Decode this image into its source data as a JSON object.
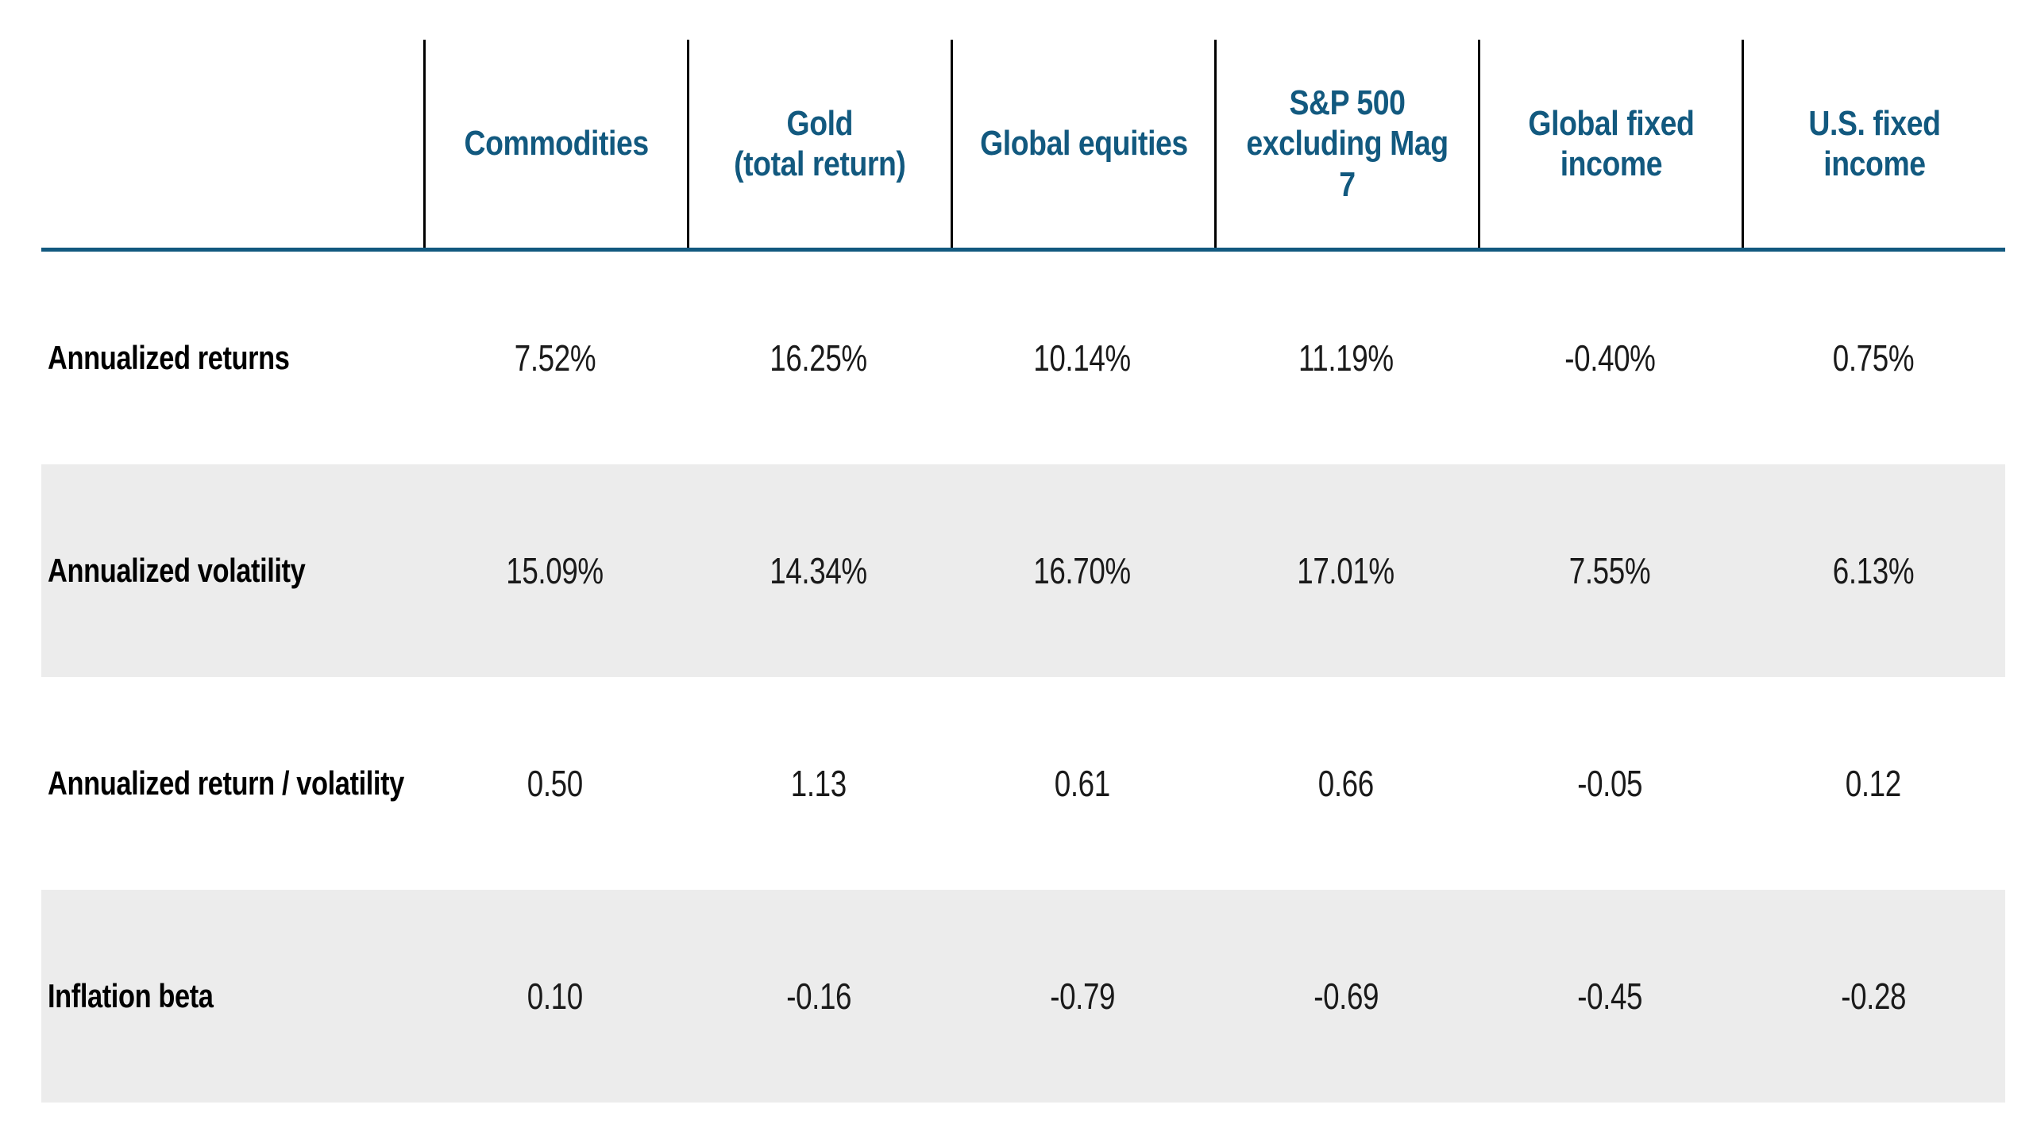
{
  "chart_data": {
    "type": "table",
    "title": "",
    "columns": [
      "Commodities",
      "Gold (total return)",
      "Global equities",
      "S&P 500 excluding Mag 7",
      "Global fixed income",
      "U.S. fixed income"
    ],
    "rows": [
      {
        "label": "Annualized returns",
        "values": [
          "7.52%",
          "16.25%",
          "10.14%",
          "11.19%",
          "-0.40%",
          "0.75%"
        ]
      },
      {
        "label": "Annualized volatility",
        "values": [
          "15.09%",
          "14.34%",
          "16.70%",
          "17.01%",
          "7.55%",
          "6.13%"
        ]
      },
      {
        "label": "Annualized return / volatility",
        "values": [
          "0.50",
          "1.13",
          "0.61",
          "0.66",
          "-0.05",
          "0.12"
        ]
      },
      {
        "label": "Inflation beta",
        "values": [
          "0.10",
          "-0.16",
          "-0.79",
          "-0.69",
          "-0.45",
          "-0.28"
        ]
      }
    ],
    "layout": {
      "shaded_rows": [
        1,
        3
      ],
      "header_dividers": "vertical black lines between value columns, header area only",
      "header_underline": "full-width blue rule"
    }
  },
  "display": {
    "column_labels": [
      "Commodities",
      "Gold\n(total return)",
      "Global equities",
      "S&P 500\nexcluding Mag 7",
      "Global fixed\nincome",
      "U.S. fixed income"
    ]
  },
  "colors": {
    "header_text_blue": "#12597F",
    "header_rule_blue": "#12597F",
    "shaded_band_gray": "#ECECEC",
    "divider_black": "#000000",
    "value_text": "#1a1a1a",
    "background": "#FFFFFF"
  }
}
